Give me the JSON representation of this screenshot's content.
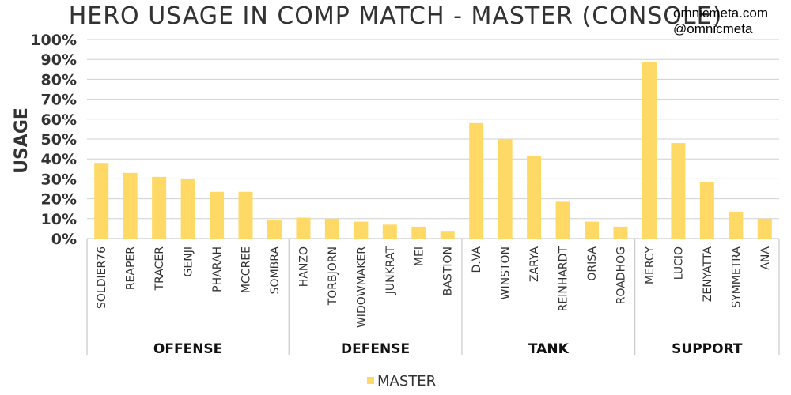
{
  "chart_data": {
    "type": "bar",
    "title": "HERO USAGE IN COMP MATCH - MASTER (CONSOLE)",
    "ylabel": "USAGE",
    "xlabel": "",
    "ylim": [
      0,
      100
    ],
    "yticks": [
      "0%",
      "10%",
      "20%",
      "30%",
      "40%",
      "50%",
      "60%",
      "70%",
      "80%",
      "90%",
      "100%"
    ],
    "grid": true,
    "legend_position": "bottom",
    "colors": {
      "bar": "#FFD966",
      "grid": "#D0D0D0",
      "axis": "#BFBFBF"
    },
    "groups": [
      {
        "label": "OFFENSE",
        "categories": [
          "SOLDIER76",
          "REAPER",
          "TRACER",
          "GENJI",
          "PHARAH",
          "MCCREE",
          "SOMBRA"
        ]
      },
      {
        "label": "DEFENSE",
        "categories": [
          "HANZO",
          "TORBJORN",
          "WIDOWMAKER",
          "JUNKRAT",
          "MEI",
          "BASTION"
        ]
      },
      {
        "label": "TANK",
        "categories": [
          "D.VA",
          "WINSTON",
          "ZARYA",
          "REINHARDT",
          "ORISA",
          "ROADHOG"
        ]
      },
      {
        "label": "SUPPORT",
        "categories": [
          "MERCY",
          "LUCIO",
          "ZENYATTA",
          "SYMMETRA",
          "ANA"
        ]
      }
    ],
    "categories": [
      "SOLDIER76",
      "REAPER",
      "TRACER",
      "GENJI",
      "PHARAH",
      "MCCREE",
      "SOMBRA",
      "HANZO",
      "TORBJORN",
      "WIDOWMAKER",
      "JUNKRAT",
      "MEI",
      "BASTION",
      "D.VA",
      "WINSTON",
      "ZARYA",
      "REINHARDT",
      "ORISA",
      "ROADHOG",
      "MERCY",
      "LUCIO",
      "ZENYATTA",
      "SYMMETRA",
      "ANA"
    ],
    "series": [
      {
        "name": "MASTER",
        "values": [
          38,
          33,
          31,
          30,
          23.5,
          23.5,
          9.5,
          10.5,
          10,
          8.5,
          7,
          6,
          3.5,
          58,
          50,
          41.5,
          18.5,
          8.5,
          6,
          88.5,
          48,
          28.5,
          13.5,
          10
        ]
      }
    ]
  },
  "watermark": {
    "line1": "omnicmeta.com",
    "line2": "@omnicmeta"
  }
}
